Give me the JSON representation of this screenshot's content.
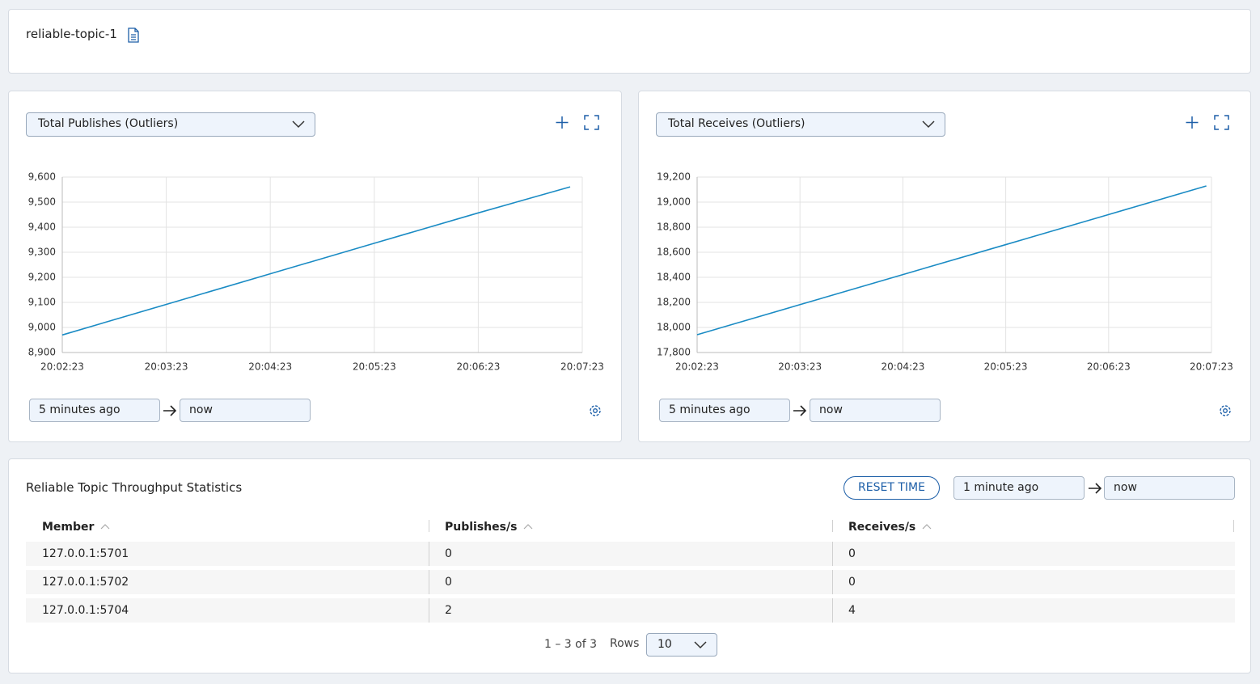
{
  "header": {
    "title": "reliable-topic-1"
  },
  "chart_data": [
    {
      "type": "line",
      "title": "Total Publishes (Outliers)",
      "color": "#1a8bc4",
      "grid": true,
      "x": [
        "20:02:23",
        "20:03:23",
        "20:04:23",
        "20:05:23",
        "20:06:23",
        "20:07:16"
      ],
      "values": [
        8970,
        9092,
        9214,
        9336,
        9457,
        9561
      ],
      "xlim": [
        "20:02:23",
        "20:07:23"
      ],
      "xticks": [
        "20:02:23",
        "20:03:23",
        "20:04:23",
        "20:05:23",
        "20:06:23",
        "20:07:23"
      ],
      "ylim": [
        8900,
        9600
      ],
      "yticks": [
        {
          "value": 8900,
          "label": "8,900"
        },
        {
          "value": 9000,
          "label": "9,000"
        },
        {
          "value": 9100,
          "label": "9,100"
        },
        {
          "value": 9200,
          "label": "9,200"
        },
        {
          "value": 9300,
          "label": "9,300"
        },
        {
          "value": 9400,
          "label": "9,400"
        },
        {
          "value": 9500,
          "label": "9,500"
        },
        {
          "value": 9600,
          "label": "9,600"
        }
      ],
      "range": {
        "from": "5 minutes ago",
        "to": "now"
      }
    },
    {
      "type": "line",
      "title": "Total Receives (Outliers)",
      "color": "#1a8bc4",
      "grid": true,
      "x": [
        "20:02:23",
        "20:03:23",
        "20:04:23",
        "20:05:23",
        "20:06:23",
        "20:07:20"
      ],
      "values": [
        17942,
        18182,
        18422,
        18661,
        18901,
        19129
      ],
      "xlim": [
        "20:02:23",
        "20:07:23"
      ],
      "xticks": [
        "20:02:23",
        "20:03:23",
        "20:04:23",
        "20:05:23",
        "20:06:23",
        "20:07:23"
      ],
      "ylim": [
        17800,
        19200
      ],
      "yticks": [
        {
          "value": 17800,
          "label": "17,800"
        },
        {
          "value": 18000,
          "label": "18,000"
        },
        {
          "value": 18200,
          "label": "18,200"
        },
        {
          "value": 18400,
          "label": "18,400"
        },
        {
          "value": 18600,
          "label": "18,600"
        },
        {
          "value": 18800,
          "label": "18,800"
        },
        {
          "value": 19000,
          "label": "19,000"
        },
        {
          "value": 19200,
          "label": "19,200"
        }
      ],
      "range": {
        "from": "5 minutes ago",
        "to": "now"
      }
    }
  ],
  "table": {
    "title": "Reliable Topic Throughput Statistics",
    "reset": "RESET TIME",
    "range": {
      "from": "1 minute ago",
      "to": "now"
    },
    "columns": [
      "Member",
      "Publishes/s",
      "Receives/s"
    ],
    "rows": [
      [
        "127.0.0.1:5701",
        0,
        0
      ],
      [
        "127.0.0.1:5702",
        0,
        0
      ],
      [
        "127.0.0.1:5704",
        2,
        4
      ]
    ],
    "pagination": {
      "summary": "1 – 3 of 3",
      "rows_label": "Rows",
      "rows_value": "10"
    }
  }
}
